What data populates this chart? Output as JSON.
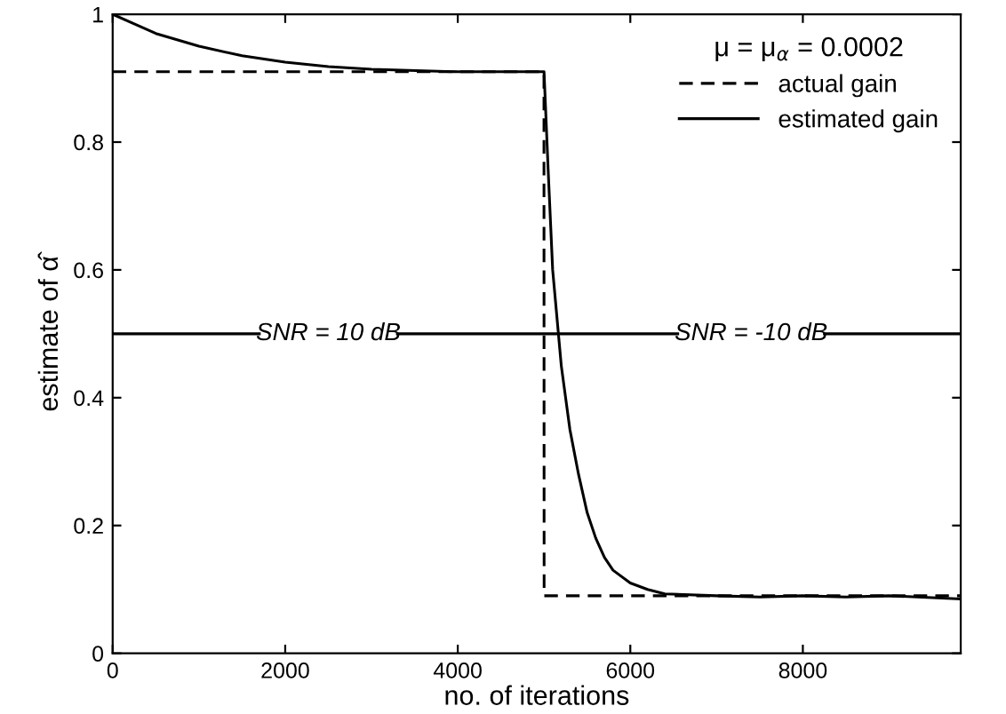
{
  "chart_data": {
    "type": "line",
    "xlabel": "no. of iterations",
    "ylabel": "estimate of α̂",
    "legend_title": "μ = μ$_{α}$ = 0.0002",
    "legend": "top right",
    "grid": false,
    "marker": "none",
    "xlim": [
      0,
      9830
    ],
    "ylim": [
      0,
      1
    ],
    "xticks": [
      0,
      2000,
      4000,
      6000,
      8000
    ],
    "yticks": [
      0,
      {
        "value": 0.2,
        "label": "0.2"
      },
      {
        "value": 0.4,
        "label": "0.4"
      },
      {
        "value": 0.6,
        "label": "0.6"
      },
      {
        "value": 0.8,
        "label": "0.8"
      },
      1
    ],
    "series": [
      {
        "name": "actual gain",
        "color": "#000000",
        "line_style": "dashed",
        "x": [
          0,
          4999,
          5001,
          9830
        ],
        "values": [
          0.91,
          0.91,
          0.09,
          0.09
        ]
      },
      {
        "color": "#000000",
        "line_style": "solid",
        "x": [
          0,
          1700,
          2500,
          3300,
          6550,
          7400,
          8250,
          9830
        ],
        "values": [
          0.5,
          0.5,
          null,
          0.5,
          0.5,
          null,
          0.5,
          0.5
        ]
      },
      {
        "name": "estimated gain",
        "color": "#000000",
        "line_style": "solid",
        "x": [
          0,
          250,
          500,
          1000,
          1500,
          2000,
          2500,
          3000,
          4000,
          5000,
          5050,
          5100,
          5200,
          5300,
          5400,
          5500,
          5600,
          5700,
          5800,
          6000,
          6200,
          6400,
          7000,
          7500,
          8000,
          8500,
          9000,
          9500,
          9830
        ],
        "values": [
          1.0,
          0.985,
          0.97,
          0.95,
          0.935,
          0.925,
          0.918,
          0.914,
          0.91,
          0.91,
          0.75,
          0.6,
          0.45,
          0.35,
          0.28,
          0.22,
          0.18,
          0.15,
          0.13,
          0.11,
          0.1,
          0.093,
          0.09,
          0.088,
          0.09,
          0.088,
          0.09,
          0.087,
          0.085
        ]
      }
    ],
    "annotations": [
      "SNR = 10 dB",
      "SNR = -10 dB"
    ]
  }
}
